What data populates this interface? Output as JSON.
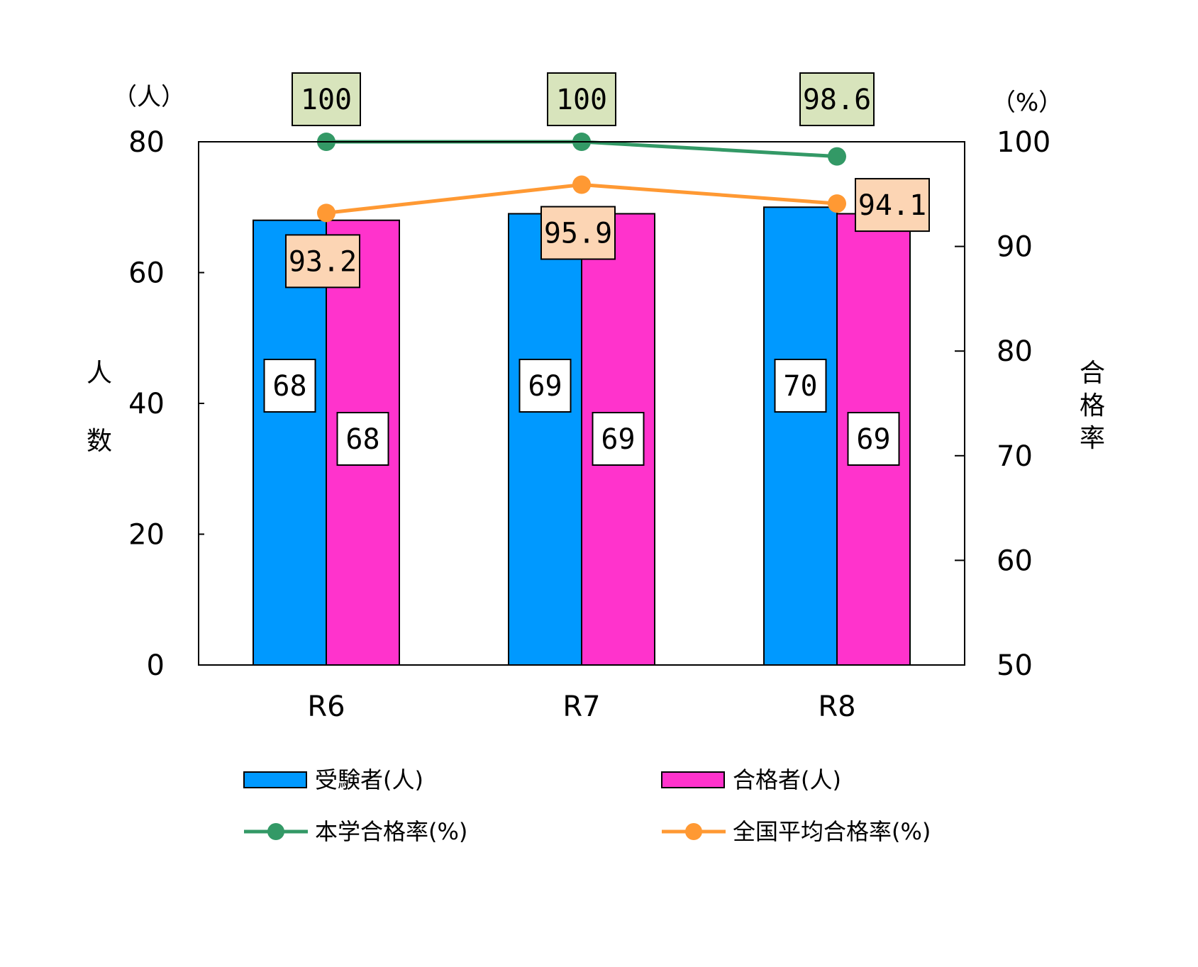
{
  "chart_data": {
    "type": "bar",
    "categories": [
      "R6",
      "R7",
      "R8"
    ],
    "series": [
      {
        "name": "受験者(人)",
        "kind": "bar",
        "axis": "left",
        "values": [
          68,
          69,
          70
        ],
        "color": "#0099ff"
      },
      {
        "name": "合格者(人)",
        "kind": "bar",
        "axis": "left",
        "values": [
          68,
          69,
          69
        ],
        "color": "#ff33cc"
      },
      {
        "name": "本学合格率(%)",
        "kind": "line",
        "axis": "right",
        "values": [
          100,
          100,
          98.6
        ],
        "color": "#339966",
        "label_bg": "#d8e4bc"
      },
      {
        "name": "全国平均合格率(%)",
        "kind": "line",
        "axis": "right",
        "values": [
          93.2,
          95.9,
          94.1
        ],
        "color": "#ff9933",
        "label_bg": "#fcd5b4"
      }
    ],
    "left_axis": {
      "range": [
        0,
        80
      ],
      "ticks": [
        0,
        20,
        40,
        60,
        80
      ],
      "unit": "（人）",
      "title": [
        "人",
        "数"
      ]
    },
    "right_axis": {
      "range": [
        50,
        100
      ],
      "ticks": [
        50,
        60,
        70,
        80,
        90,
        100
      ],
      "unit": "（%）",
      "title": [
        "合",
        "格",
        "率"
      ]
    },
    "grid": false,
    "legend_position": "bottom"
  }
}
